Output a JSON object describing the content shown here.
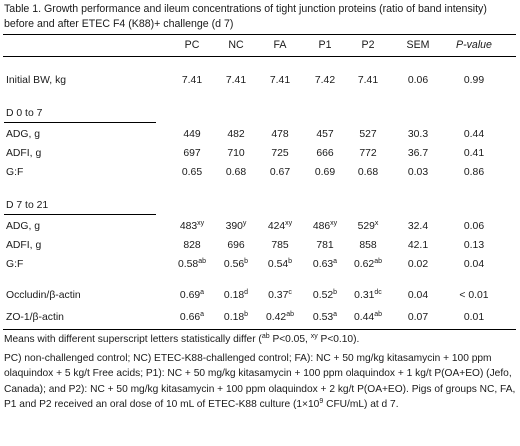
{
  "title": "Table 1. Growth performance and ileum concentrations of tight junction proteins (ratio of band intensity) before and after ETEC F4 (K88)+ challenge (d 7)",
  "columns": [
    "PC",
    "NC",
    "FA",
    "P1",
    "P2",
    "SEM",
    "P-value"
  ],
  "rows": {
    "bw": {
      "label": "Initial BW, kg",
      "cells": [
        [
          "7.41",
          ""
        ],
        [
          "7.41",
          ""
        ],
        [
          "7.41",
          ""
        ],
        [
          "7.42",
          ""
        ],
        [
          "7.41",
          ""
        ],
        [
          "0.06",
          ""
        ],
        [
          "0.99",
          ""
        ]
      ]
    },
    "s1": {
      "label": "D 0 to 7"
    },
    "adg1": {
      "label": "ADG, g",
      "cells": [
        [
          "449",
          ""
        ],
        [
          "482",
          ""
        ],
        [
          "478",
          ""
        ],
        [
          "457",
          ""
        ],
        [
          "527",
          ""
        ],
        [
          "30.3",
          ""
        ],
        [
          "0.44",
          ""
        ]
      ]
    },
    "adfi1": {
      "label": "ADFI, g",
      "cells": [
        [
          "697",
          ""
        ],
        [
          "710",
          ""
        ],
        [
          "725",
          ""
        ],
        [
          "666",
          ""
        ],
        [
          "772",
          ""
        ],
        [
          "36.7",
          ""
        ],
        [
          "0.41",
          ""
        ]
      ]
    },
    "gf1": {
      "label": "G:F",
      "cells": [
        [
          "0.65",
          ""
        ],
        [
          "0.68",
          ""
        ],
        [
          "0.67",
          ""
        ],
        [
          "0.69",
          ""
        ],
        [
          "0.68",
          ""
        ],
        [
          "0.03",
          ""
        ],
        [
          "0.86",
          ""
        ]
      ]
    },
    "s2": {
      "label": "D 7 to 21"
    },
    "adg2": {
      "label": "ADG, g",
      "cells": [
        [
          "483",
          "xy"
        ],
        [
          "390",
          "y"
        ],
        [
          "424",
          "xy"
        ],
        [
          "486",
          "xy"
        ],
        [
          "529",
          "x"
        ],
        [
          "32.4",
          ""
        ],
        [
          "0.06",
          ""
        ]
      ]
    },
    "adfi2": {
      "label": "ADFI, g",
      "cells": [
        [
          "828",
          ""
        ],
        [
          "696",
          ""
        ],
        [
          "785",
          ""
        ],
        [
          "781",
          ""
        ],
        [
          "858",
          ""
        ],
        [
          "42.1",
          ""
        ],
        [
          "0.13",
          ""
        ]
      ]
    },
    "gf2": {
      "label": "G:F",
      "cells": [
        [
          "0.58",
          "ab"
        ],
        [
          "0.56",
          "b"
        ],
        [
          "0.54",
          "b"
        ],
        [
          "0.63",
          "a"
        ],
        [
          "0.62",
          "ab"
        ],
        [
          "0.02",
          ""
        ],
        [
          "0.04",
          ""
        ]
      ]
    },
    "occ": {
      "label": "Occludin/β-actin",
      "cells": [
        [
          "0.69",
          "a"
        ],
        [
          "0.18",
          "d"
        ],
        [
          "0.37",
          "c"
        ],
        [
          "0.52",
          "b"
        ],
        [
          "0.31",
          "dc"
        ],
        [
          "0.04",
          ""
        ],
        [
          "< 0.01",
          ""
        ]
      ]
    },
    "zo1": {
      "label": "ZO-1/β-actin",
      "cells": [
        [
          "0.66",
          "a"
        ],
        [
          "0.18",
          "b"
        ],
        [
          "0.42",
          "ab"
        ],
        [
          "0.53",
          "a"
        ],
        [
          "0.44",
          "ab"
        ],
        [
          "0.07",
          ""
        ],
        [
          "0.01",
          ""
        ]
      ]
    }
  },
  "footnotes": {
    "means": "Means with different superscript letters statistically differ (",
    "means_sup1": "ab",
    "means_mid": " P<0.05, ",
    "means_sup2": "xy",
    "means_end": " P<0.10).",
    "groups_a": "PC) non-challenged control; NC) ETEC-K88-challenged control; FA): NC + 50 mg/kg kitasamycin + 100 ppm olaquindox + 5 kg/t Free acids; P1): NC + 50 mg/kg kitasamycin + 100 ppm olaquindox + 1 kg/t P(OA+EO) (Jefo, Canada); and P2): NC + 50 mg/kg kitasamycin + 100 ppm olaquindox + 2 kg/t P(OA+EO). Pigs of groups NC, FA, P1 and P2 received an oral dose of 10 mL of ETEC-K88 culture (1×10",
    "groups_sup": "9",
    "groups_b": " CFU/mL) at d 7."
  }
}
